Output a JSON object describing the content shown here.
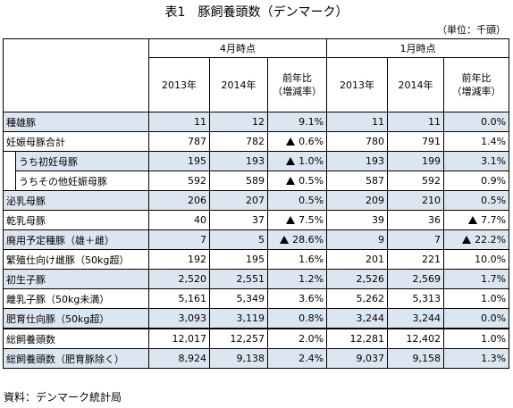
{
  "title": "表1　豚飼養頭数（デンマーク）",
  "unit": "（単位：千頭）",
  "header": {
    "period_april": "4月時点",
    "period_january": "1月時点",
    "col_2013": "2013年",
    "col_2014": "2014年",
    "col_ratio_line1": "前年比",
    "col_ratio_line2": "（増減率）"
  },
  "rows": [
    {
      "label": "種雄豚",
      "a2013": "11",
      "a2014": "12",
      "aratio": "9.1%",
      "aneg": false,
      "j2013": "11",
      "j2014": "11",
      "jratio": "0.0%",
      "jneg": false
    },
    {
      "label": "妊娠母豚合計",
      "a2013": "787",
      "a2014": "782",
      "aratio": "0.6%",
      "aneg": true,
      "j2013": "780",
      "j2014": "791",
      "jratio": "1.4%",
      "jneg": false
    },
    {
      "label": "うち初妊母豚",
      "a2013": "195",
      "a2014": "193",
      "aratio": "1.0%",
      "aneg": true,
      "j2013": "193",
      "j2014": "199",
      "jratio": "3.1%",
      "jneg": false
    },
    {
      "label": "うちその他妊娠母豚",
      "a2013": "592",
      "a2014": "589",
      "aratio": "0.5%",
      "aneg": true,
      "j2013": "587",
      "j2014": "592",
      "jratio": "0.9%",
      "jneg": false
    },
    {
      "label": "泌乳母豚",
      "a2013": "206",
      "a2014": "207",
      "aratio": "0.5%",
      "aneg": false,
      "j2013": "209",
      "j2014": "210",
      "jratio": "0.5%",
      "jneg": false
    },
    {
      "label": "乾乳母豚",
      "a2013": "40",
      "a2014": "37",
      "aratio": "7.5%",
      "aneg": true,
      "j2013": "39",
      "j2014": "36",
      "jratio": "7.7%",
      "jneg": true
    },
    {
      "label": "廃用予定種豚（雄＋雌）",
      "a2013": "7",
      "a2014": "5",
      "aratio": "28.6%",
      "aneg": true,
      "j2013": "9",
      "j2014": "7",
      "jratio": "22.2%",
      "jneg": true
    },
    {
      "label": "繁殖仕向け雌豚（50kg超）",
      "a2013": "192",
      "a2014": "195",
      "aratio": "1.6%",
      "aneg": false,
      "j2013": "201",
      "j2014": "221",
      "jratio": "10.0%",
      "jneg": false
    },
    {
      "label": "初生子豚",
      "a2013": "2,520",
      "a2014": "2,551",
      "aratio": "1.2%",
      "aneg": false,
      "j2013": "2,526",
      "j2014": "2,569",
      "jratio": "1.7%",
      "jneg": false
    },
    {
      "label": "離乳子豚（50kg未満）",
      "a2013": "5,161",
      "a2014": "5,349",
      "aratio": "3.6%",
      "aneg": false,
      "j2013": "5,262",
      "j2014": "5,313",
      "jratio": "1.0%",
      "jneg": false
    },
    {
      "label": "肥育仕向豚（50kg超）",
      "a2013": "3,093",
      "a2014": "3,119",
      "aratio": "0.8%",
      "aneg": false,
      "j2013": "3,244",
      "j2014": "3,244",
      "jratio": "0.0%",
      "jneg": false
    },
    {
      "label": "総飼養頭数",
      "a2013": "12,017",
      "a2014": "12,257",
      "aratio": "2.0%",
      "aneg": false,
      "j2013": "12,281",
      "j2014": "12,402",
      "jratio": "1.0%",
      "jneg": false
    },
    {
      "label": "総飼養頭数（肥育豚除く）",
      "a2013": "8,924",
      "a2014": "9,138",
      "aratio": "2.4%",
      "aneg": false,
      "j2013": "9,037",
      "j2014": "9,158",
      "jratio": "1.3%",
      "jneg": false
    }
  ],
  "source": "資料：デンマーク統計局",
  "colors": {
    "row_highlight": "#dce6f1",
    "border": "#000000"
  }
}
